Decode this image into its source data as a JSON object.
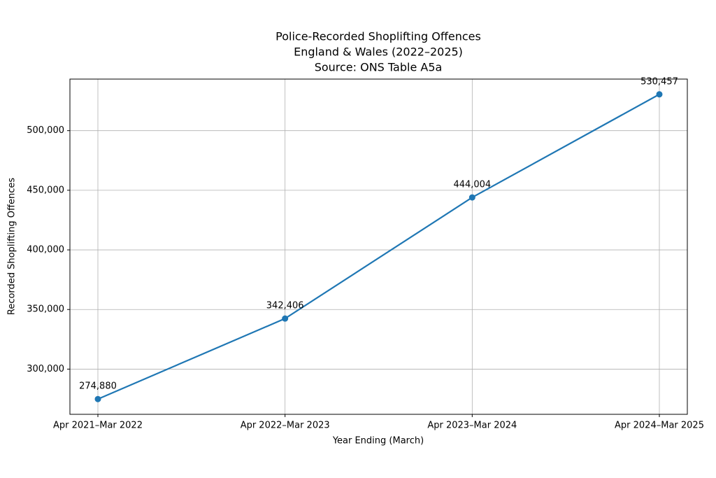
{
  "chart_data": {
    "type": "line",
    "title": [
      "Police-Recorded Shoplifting Offences",
      "England & Wales (2022–2025)",
      "Source: ONS Table A5a"
    ],
    "x_label": "Year Ending (March)",
    "y_label": "Recorded Shoplifting Offences",
    "categories": [
      "Apr 2021–Mar 2022",
      "Apr 2022–Mar 2023",
      "Apr 2023–Mar 2024",
      "Apr 2024–Mar 2025"
    ],
    "series": [
      {
        "name": "Recorded Shoplifting Offences",
        "color": "#1f77b4",
        "values": [
          274880,
          342406,
          444004,
          530457
        ],
        "value_labels": [
          "274,880",
          "342,406",
          "444,004",
          "530,457"
        ]
      }
    ],
    "ylim": [
      262101,
      543236
    ],
    "yticks": [
      {
        "value": 300000,
        "label": "300,000"
      },
      {
        "value": 350000,
        "label": "350,000"
      },
      {
        "value": 400000,
        "label": "400,000"
      },
      {
        "value": 450000,
        "label": "450,000"
      },
      {
        "value": 500000,
        "label": "500,000"
      }
    ],
    "grid": true
  }
}
